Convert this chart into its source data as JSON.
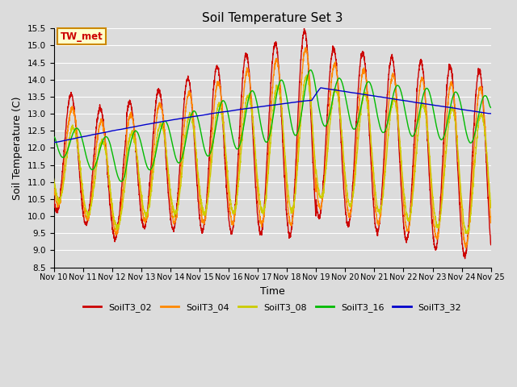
{
  "title": "Soil Temperature Set 3",
  "xlabel": "Time",
  "ylabel": "Soil Temperature (C)",
  "ylim": [
    8.5,
    15.5
  ],
  "xlim": [
    0,
    15
  ],
  "x_tick_labels": [
    "Nov 10",
    "Nov 11",
    "Nov 12",
    "Nov 13",
    "Nov 14",
    "Nov 15",
    "Nov 16",
    "Nov 17",
    "Nov 18",
    "Nov 19",
    "Nov 20",
    "Nov 21",
    "Nov 22",
    "Nov 23",
    "Nov 24",
    "Nov 25"
  ],
  "yticks": [
    8.5,
    9.0,
    9.5,
    10.0,
    10.5,
    11.0,
    11.5,
    12.0,
    12.5,
    13.0,
    13.5,
    14.0,
    14.5,
    15.0,
    15.5
  ],
  "annotation_text": "TW_met",
  "annotation_color": "#cc0000",
  "annotation_bg": "#ffffcc",
  "annotation_border": "#cc8800",
  "background_color": "#dcdcdc",
  "plot_bg": "#dcdcdc",
  "grid_color": "#ffffff",
  "series": {
    "SoilT3_02": {
      "color": "#cc0000",
      "linewidth": 1.0
    },
    "SoilT3_04": {
      "color": "#ff8800",
      "linewidth": 1.0
    },
    "SoilT3_08": {
      "color": "#cccc00",
      "linewidth": 1.0
    },
    "SoilT3_16": {
      "color": "#00bb00",
      "linewidth": 1.0
    },
    "SoilT3_32": {
      "color": "#0000cc",
      "linewidth": 1.0
    }
  },
  "legend_entries": [
    "SoilT3_02",
    "SoilT3_04",
    "SoilT3_08",
    "SoilT3_16",
    "SoilT3_32"
  ],
  "legend_colors": [
    "#cc0000",
    "#ff8800",
    "#cccc00",
    "#00bb00",
    "#0000cc"
  ]
}
